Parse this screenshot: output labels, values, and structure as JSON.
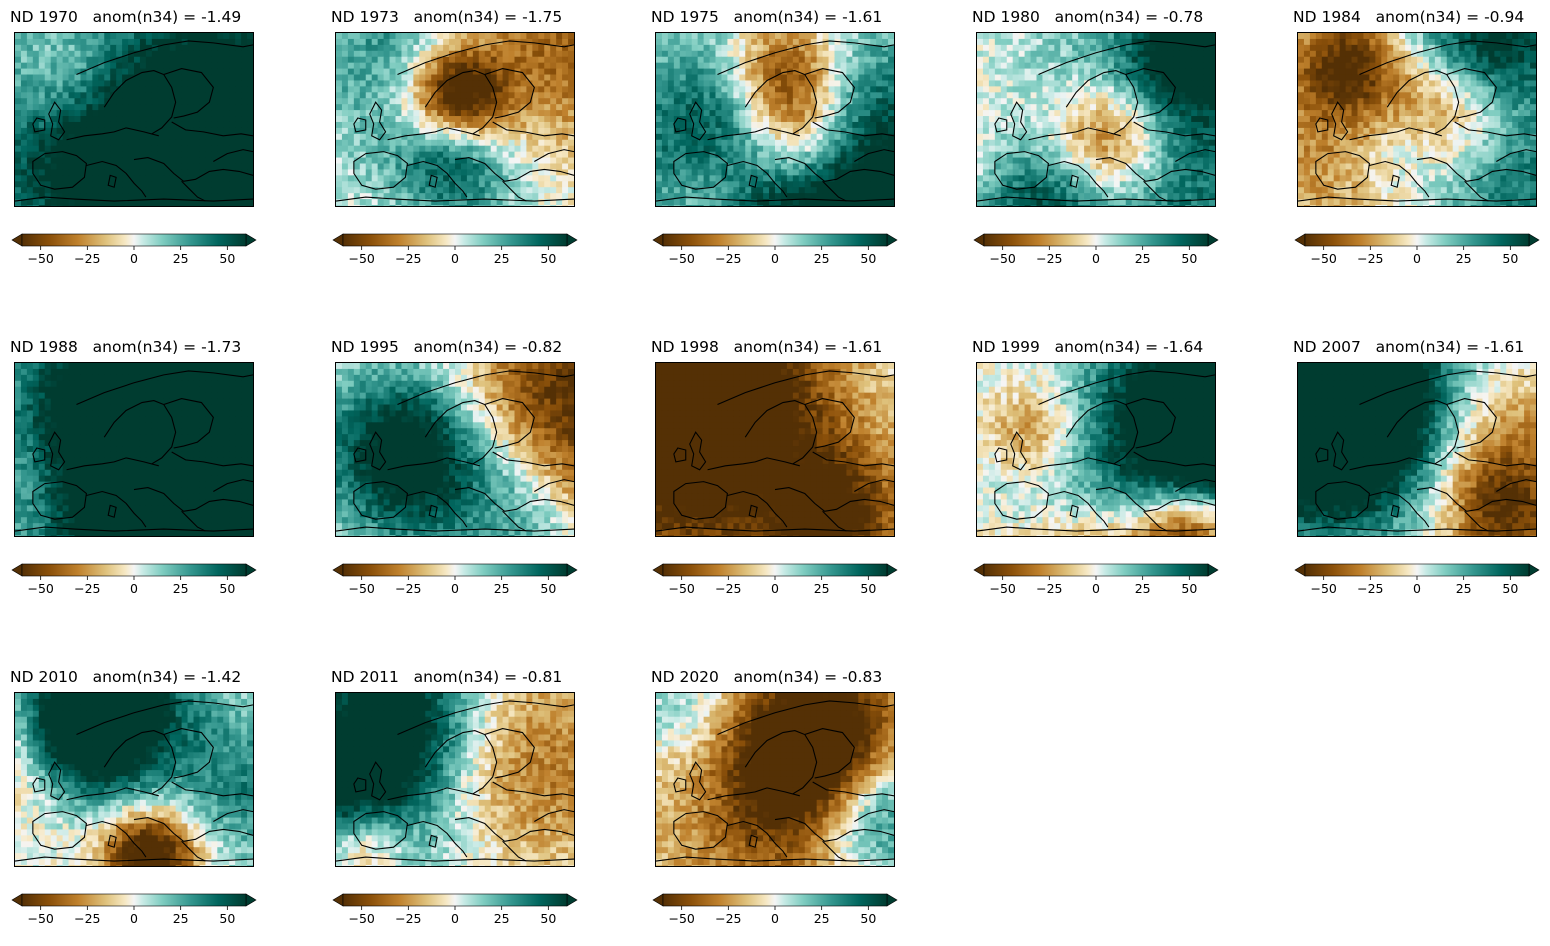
{
  "figure": {
    "colormap": "BrBG",
    "colorbar": {
      "ticks": [
        "−50",
        "−25",
        "0",
        "25",
        "50"
      ],
      "tick_values": [
        -50,
        -25,
        0,
        25,
        50
      ],
      "range": [
        -60,
        60
      ],
      "extend": "both"
    },
    "panels": [
      {
        "title": "ND 1970   anom(n34) = -1.49",
        "year": 1970,
        "n34": -1.49
      },
      {
        "title": "ND 1973   anom(n34) = -1.75",
        "year": 1973,
        "n34": -1.75
      },
      {
        "title": "ND 1975   anom(n34) = -1.61",
        "year": 1975,
        "n34": -1.61
      },
      {
        "title": "ND 1980   anom(n34) = -0.78",
        "year": 1980,
        "n34": -0.78
      },
      {
        "title": "ND 1984   anom(n34) = -0.94",
        "year": 1984,
        "n34": -0.94
      },
      {
        "title": "ND 1988   anom(n34) = -1.73",
        "year": 1988,
        "n34": -1.73
      },
      {
        "title": "ND 1995   anom(n34) = -0.82",
        "year": 1995,
        "n34": -0.82
      },
      {
        "title": "ND 1998   anom(n34) = -1.61",
        "year": 1998,
        "n34": -1.61
      },
      {
        "title": "ND 1999   anom(n34) = -1.64",
        "year": 1999,
        "n34": -1.64
      },
      {
        "title": "ND 2007   anom(n34) = -1.61",
        "year": 2007,
        "n34": -1.61
      },
      {
        "title": "ND 2010   anom(n34) = -1.42",
        "year": 2010,
        "n34": -1.42
      },
      {
        "title": "ND 2011   anom(n34) = -0.81",
        "year": 2011,
        "n34": -0.81
      },
      {
        "title": "ND 2020   anom(n34) = -0.83",
        "year": 2020,
        "n34": -0.83
      }
    ]
  }
}
